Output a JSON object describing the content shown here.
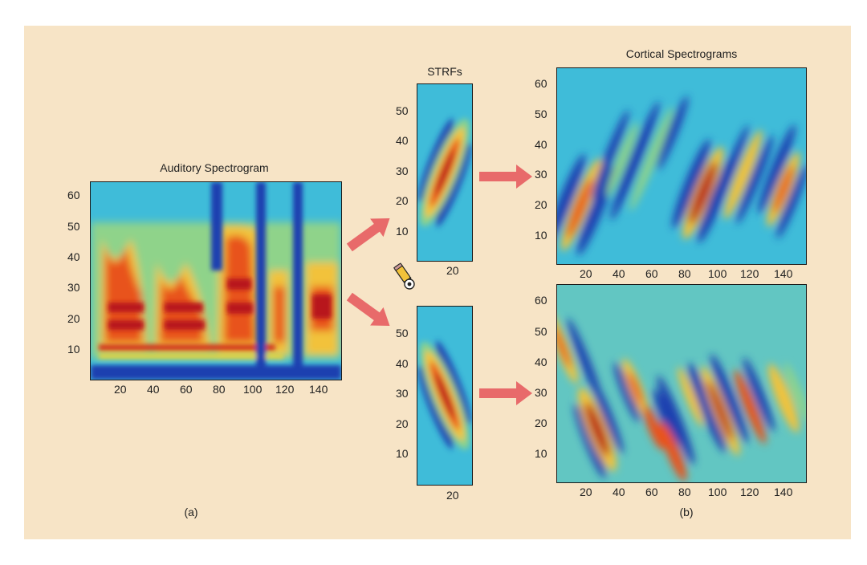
{
  "titles": {
    "auditory": "Auditory Spectrogram",
    "strfs": "STRFs",
    "cortical": "Cortical Spectrograms"
  },
  "captions": {
    "a": "(a)",
    "b": "(b)"
  },
  "axes": {
    "auditory": {
      "y_ticks": [
        "10",
        "20",
        "30",
        "40",
        "50",
        "60"
      ],
      "x_ticks": [
        "20",
        "40",
        "60",
        "80",
        "100",
        "120",
        "140"
      ]
    },
    "strf_top": {
      "y_ticks": [
        "10",
        "20",
        "30",
        "40",
        "50"
      ],
      "x_ticks": [
        "20"
      ]
    },
    "strf_bottom": {
      "y_ticks": [
        "10",
        "20",
        "30",
        "40",
        "50"
      ],
      "x_ticks": [
        "20"
      ]
    },
    "cortical_top": {
      "y_ticks": [
        "10",
        "20",
        "30",
        "40",
        "50",
        "60"
      ],
      "x_ticks": [
        "20",
        "40",
        "60",
        "80",
        "100",
        "120",
        "140"
      ]
    },
    "cortical_bottom": {
      "y_ticks": [
        "10",
        "20",
        "30",
        "40",
        "50",
        "60"
      ],
      "x_ticks": [
        "20",
        "40",
        "60",
        "80",
        "100",
        "120",
        "140"
      ]
    }
  },
  "colors": {
    "background": "#f7e4c6",
    "arrow": "#e86a6a",
    "colormap": "jet"
  },
  "icons": {
    "cursor": "pencil-cursor-icon"
  }
}
